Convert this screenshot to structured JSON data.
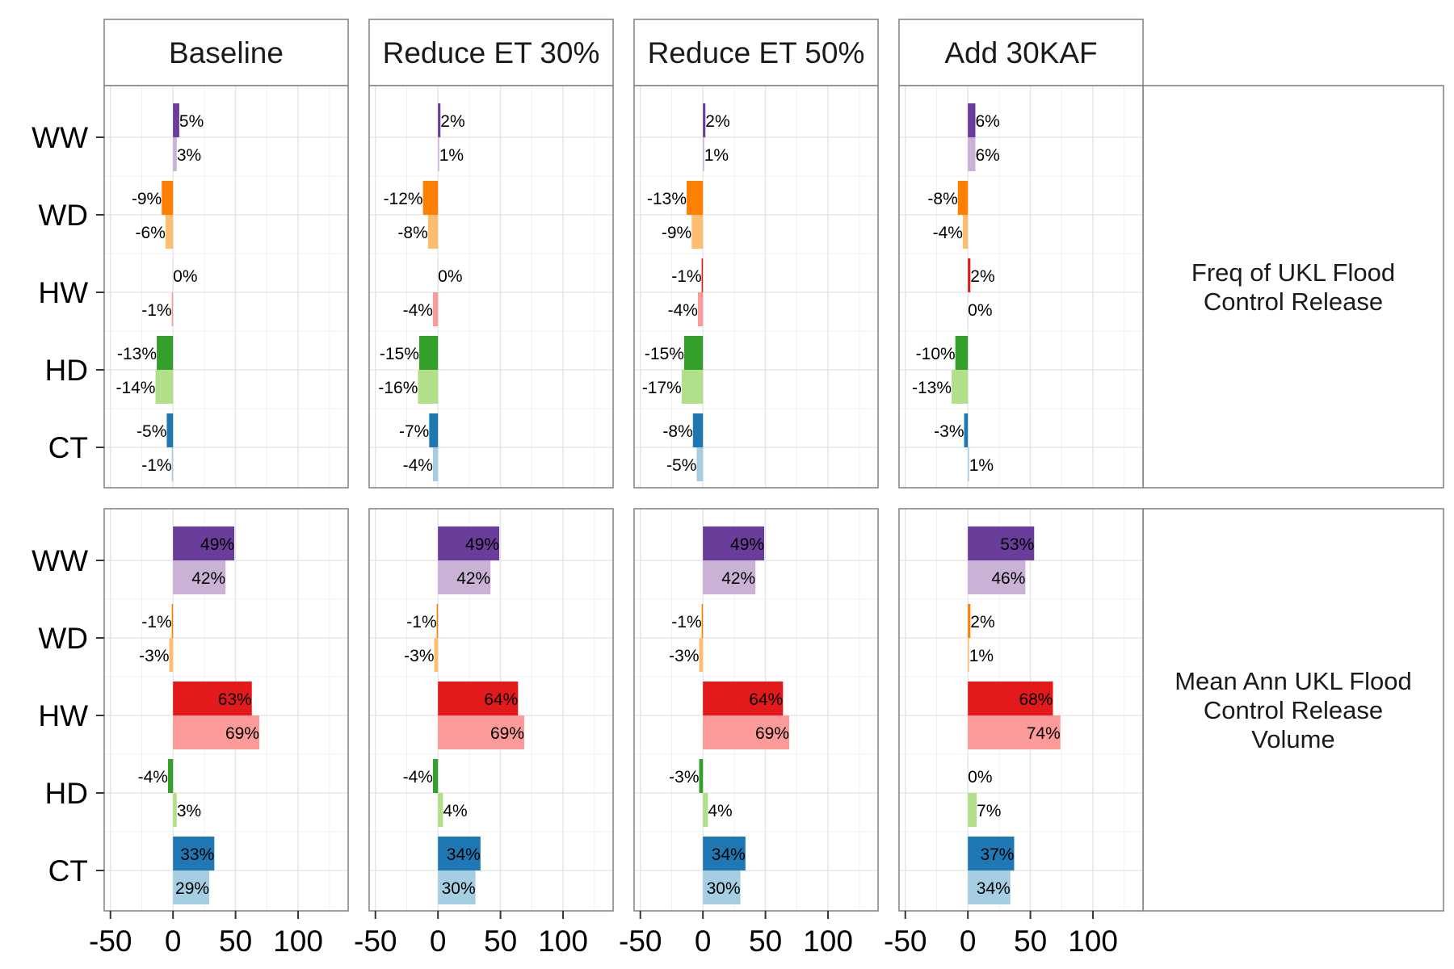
{
  "chart_data": {
    "type": "bar",
    "orientation": "horizontal",
    "facet_columns": [
      "Baseline",
      "Reduce ET 30%",
      "Reduce ET 50%",
      "Add 30KAF"
    ],
    "facet_rows": [
      {
        "label": "Freq of UKL Flood\nControl Release"
      },
      {
        "label": "Mean Ann UKL Flood\nControl Release\nVolume"
      }
    ],
    "categories": [
      "WW",
      "WD",
      "HW",
      "HD",
      "CT"
    ],
    "xlim": [
      -55,
      140
    ],
    "xticks": [
      -50,
      0,
      50,
      100
    ],
    "grid": true,
    "legend": "none",
    "colors": {
      "WW": [
        "#6a3d9a",
        "#cab2d6"
      ],
      "WD": [
        "#ff7f00",
        "#fdbf6f"
      ],
      "HW": [
        "#e31a1c",
        "#fb9a99"
      ],
      "HD": [
        "#33a02c",
        "#b2df8a"
      ],
      "CT": [
        "#1f78b4",
        "#a6cee3"
      ]
    },
    "panels": [
      [
        {
          "values": {
            "WW": [
              5,
              3
            ],
            "WD": [
              -9,
              -6
            ],
            "HW": [
              0,
              -1
            ],
            "HD": [
              -13,
              -14
            ],
            "CT": [
              -5,
              -1
            ]
          },
          "labels": {
            "WW": [
              "5%",
              "3%"
            ],
            "WD": [
              "-9%",
              "-6%"
            ],
            "HW": [
              "0%",
              "-1%"
            ],
            "HD": [
              "-13%",
              "-14%"
            ],
            "CT": [
              "-5%",
              "-1%"
            ]
          }
        },
        {
          "values": {
            "WW": [
              2,
              1
            ],
            "WD": [
              -12,
              -8
            ],
            "HW": [
              0,
              -4
            ],
            "HD": [
              -15,
              -16
            ],
            "CT": [
              -7,
              -4
            ]
          },
          "labels": {
            "WW": [
              "2%",
              "1%"
            ],
            "WD": [
              "-12%",
              "-8%"
            ],
            "HW": [
              "0%",
              "-4%"
            ],
            "HD": [
              "-15%",
              "-16%"
            ],
            "CT": [
              "-7%",
              "-4%"
            ]
          }
        },
        {
          "values": {
            "WW": [
              2,
              1
            ],
            "WD": [
              -13,
              -9
            ],
            "HW": [
              -1,
              -4
            ],
            "HD": [
              -15,
              -17
            ],
            "CT": [
              -8,
              -5
            ]
          },
          "labels": {
            "WW": [
              "2%",
              "1%"
            ],
            "WD": [
              "-13%",
              "-9%"
            ],
            "HW": [
              "-1%",
              "-4%"
            ],
            "HD": [
              "-15%",
              "-17%"
            ],
            "CT": [
              "-8%",
              "-5%"
            ]
          }
        },
        {
          "values": {
            "WW": [
              6,
              6
            ],
            "WD": [
              -8,
              -4
            ],
            "HW": [
              2,
              0
            ],
            "HD": [
              -10,
              -13
            ],
            "CT": [
              -3,
              1
            ]
          },
          "labels": {
            "WW": [
              "6%",
              "6%"
            ],
            "WD": [
              "-8%",
              "-4%"
            ],
            "HW": [
              "2%",
              "0%"
            ],
            "HD": [
              "-10%",
              "-13%"
            ],
            "CT": [
              "-3%",
              "1%"
            ]
          }
        }
      ],
      [
        {
          "values": {
            "WW": [
              49,
              42
            ],
            "WD": [
              -1,
              -3
            ],
            "HW": [
              63,
              69
            ],
            "HD": [
              -4,
              3
            ],
            "CT": [
              33,
              29
            ]
          },
          "labels": {
            "WW": [
              "49%",
              "42%"
            ],
            "WD": [
              "-1%",
              "-3%"
            ],
            "HW": [
              "63%",
              "69%"
            ],
            "HD": [
              "-4%",
              "3%"
            ],
            "CT": [
              "33%",
              "29%"
            ]
          }
        },
        {
          "values": {
            "WW": [
              49,
              42
            ],
            "WD": [
              -1,
              -3
            ],
            "HW": [
              64,
              69
            ],
            "HD": [
              -4,
              4
            ],
            "CT": [
              34,
              30
            ]
          },
          "labels": {
            "WW": [
              "49%",
              "42%"
            ],
            "WD": [
              "-1%",
              "-3%"
            ],
            "HW": [
              "64%",
              "69%"
            ],
            "HD": [
              "-4%",
              "4%"
            ],
            "CT": [
              "34%",
              "30%"
            ]
          }
        },
        {
          "values": {
            "WW": [
              49,
              42
            ],
            "WD": [
              -1,
              -3
            ],
            "HW": [
              64,
              69
            ],
            "HD": [
              -3,
              4
            ],
            "CT": [
              34,
              30
            ]
          },
          "labels": {
            "WW": [
              "49%",
              "42%"
            ],
            "WD": [
              "-1%",
              "-3%"
            ],
            "HW": [
              "64%",
              "69%"
            ],
            "HD": [
              "-3%",
              "4%"
            ],
            "CT": [
              "34%",
              "30%"
            ]
          }
        },
        {
          "values": {
            "WW": [
              53,
              46
            ],
            "WD": [
              2,
              1
            ],
            "HW": [
              68,
              74
            ],
            "HD": [
              0,
              7
            ],
            "CT": [
              37,
              34
            ]
          },
          "labels": {
            "WW": [
              "53%",
              "46%"
            ],
            "WD": [
              "2%",
              "1%"
            ],
            "HW": [
              "68%",
              "74%"
            ],
            "HD": [
              "0%",
              "7%"
            ],
            "CT": [
              "37%",
              "34%"
            ]
          }
        }
      ]
    ]
  }
}
